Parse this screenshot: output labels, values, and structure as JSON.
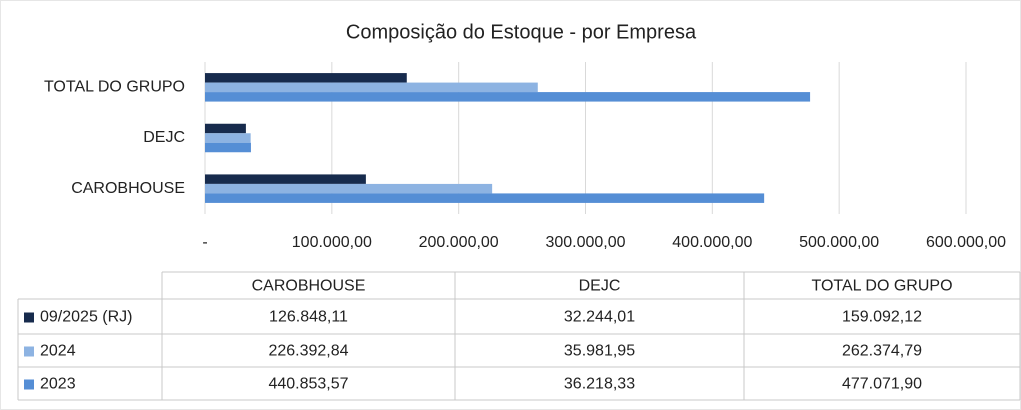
{
  "chart_data": {
    "type": "bar",
    "orientation": "horizontal",
    "title": "Composição do Estoque - por Empresa",
    "categories": [
      "CAROBHOUSE",
      "DEJC",
      "TOTAL DO GRUPO"
    ],
    "series": [
      {
        "name": "09/2025 (RJ)",
        "color": "#172b4d",
        "values": [
          126848.11,
          32244.01,
          159092.12
        ],
        "value_labels": [
          "126.848,11",
          "32.244,01",
          "159.092,12"
        ]
      },
      {
        "name": "2024",
        "color": "#8db3e2",
        "values": [
          226392.84,
          35981.95,
          262374.79
        ],
        "value_labels": [
          "226.392,84",
          "35.981,95",
          "262.374,79"
        ]
      },
      {
        "name": "2023",
        "color": "#558ed5",
        "values": [
          440853.57,
          36218.33,
          477071.9
        ],
        "value_labels": [
          "440.853,57",
          "36.218,33",
          "477.071,90"
        ]
      }
    ],
    "xlim": [
      0,
      600000
    ],
    "xticks": [
      {
        "value": 0,
        "label": "-"
      },
      {
        "value": 100000,
        "label": "100.000,00"
      },
      {
        "value": 200000,
        "label": "200.000,00"
      },
      {
        "value": 300000,
        "label": "300.000,00"
      },
      {
        "value": 400000,
        "label": "400.000,00"
      },
      {
        "value": 500000,
        "label": "500.000,00"
      },
      {
        "value": 600000,
        "label": "600.000,00"
      }
    ],
    "grid": true
  }
}
